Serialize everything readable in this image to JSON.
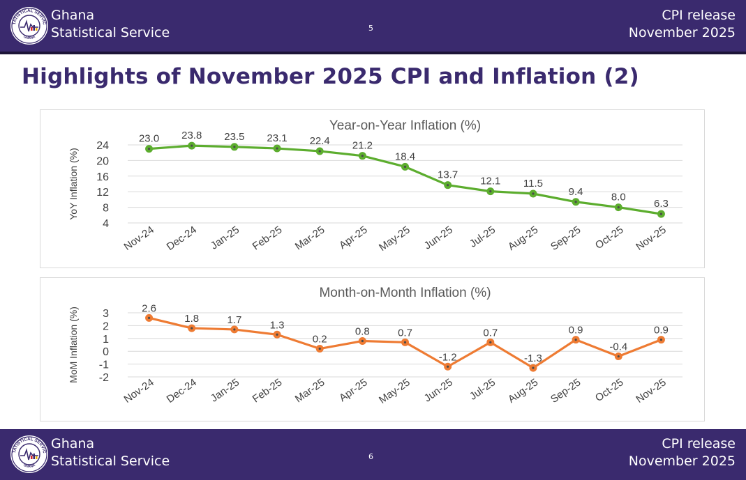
{
  "header": {
    "org_line1": "Ghana",
    "org_line2": "Statistical Service",
    "page_number": "5",
    "release_line1": "CPI release",
    "release_line2": "November  2025"
  },
  "footer": {
    "org_line1": "Ghana",
    "org_line2": "Statistical Service",
    "page_number": "6",
    "release_line1": "CPI release",
    "release_line2": "November  2025"
  },
  "logo": {
    "ring_text_top": "STATISTICAL SERVICE",
    "ring_text_bottom": "GHANA"
  },
  "title": "Highlights of November 2025 CPI and Inflation (2)",
  "colors": {
    "brand": "#3a2a6e",
    "yoy_line": "#5cad2e",
    "mom_line": "#ee7b33"
  },
  "chart_data": [
    {
      "type": "line",
      "title": "Year-on-Year Inflation (%)",
      "xlabel": "",
      "ylabel": "YoY Inflation (%)",
      "ylim": [
        4,
        24
      ],
      "yticks": [
        4,
        8,
        12,
        16,
        20,
        24
      ],
      "grid": true,
      "categories": [
        "Nov-24",
        "Dec-24",
        "Jan-25",
        "Feb-25",
        "Mar-25",
        "Apr-25",
        "May-25",
        "Jun-25",
        "Jul-25",
        "Aug-25",
        "Sep-25",
        "Oct-25",
        "Nov-25"
      ],
      "values": [
        23.0,
        23.8,
        23.5,
        23.1,
        22.4,
        21.2,
        18.4,
        13.7,
        12.1,
        11.5,
        9.4,
        8.0,
        6.3
      ],
      "labels": [
        "23.0",
        "23.8",
        "23.5",
        "23.1",
        "22.4",
        "21.2",
        "18.4",
        "13.7",
        "12.1",
        "11.5",
        "9.4",
        "8.0",
        "6.3"
      ]
    },
    {
      "type": "line",
      "title": "Month-on-Month Inflation (%)",
      "xlabel": "",
      "ylabel": "MoM Inflation (%)",
      "ylim": [
        -2,
        3
      ],
      "yticks": [
        -2,
        -1,
        0,
        1,
        2,
        3
      ],
      "grid": true,
      "categories": [
        "Nov-24",
        "Dec-24",
        "Jan-25",
        "Feb-25",
        "Mar-25",
        "Apr-25",
        "May-25",
        "Jun-25",
        "Jul-25",
        "Aug-25",
        "Sep-25",
        "Oct-25",
        "Nov-25"
      ],
      "values": [
        2.6,
        1.8,
        1.7,
        1.3,
        0.2,
        0.8,
        0.7,
        -1.2,
        0.7,
        -1.3,
        0.9,
        -0.4,
        0.9
      ],
      "labels": [
        "2.6",
        "1.8",
        "1.7",
        "1.3",
        "0.2",
        "0.8",
        "0.7",
        "-1.2",
        "0.7",
        "-1.3",
        "0.9",
        "-0.4",
        "0.9"
      ]
    }
  ]
}
